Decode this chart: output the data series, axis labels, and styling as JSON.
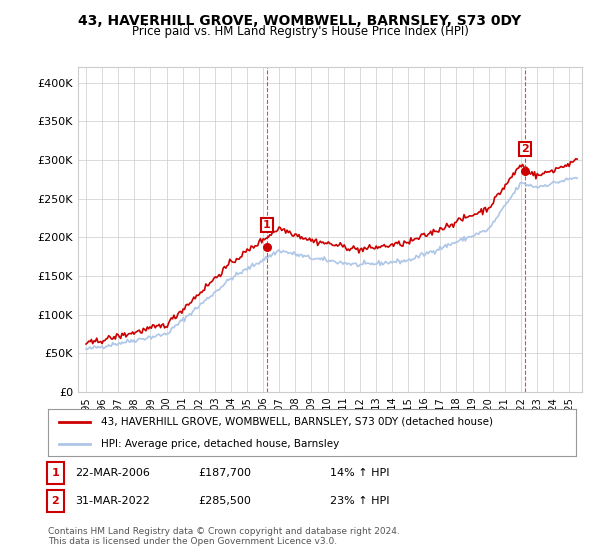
{
  "title": "43, HAVERHILL GROVE, WOMBWELL, BARNSLEY, S73 0DY",
  "subtitle": "Price paid vs. HM Land Registry's House Price Index (HPI)",
  "ylabel_ticks": [
    "£0",
    "£50K",
    "£100K",
    "£150K",
    "£200K",
    "£250K",
    "£300K",
    "£350K",
    "£400K"
  ],
  "ytick_values": [
    0,
    50000,
    100000,
    150000,
    200000,
    250000,
    300000,
    350000,
    400000
  ],
  "ylim": [
    0,
    420000
  ],
  "xlim_start": 1995.0,
  "xlim_end": 2025.5,
  "transaction1": {
    "date_year": 2006.23,
    "price": 187700,
    "label": "1"
  },
  "transaction2": {
    "date_year": 2022.25,
    "price": 285500,
    "label": "2"
  },
  "legend_line1": "43, HAVERHILL GROVE, WOMBWELL, BARNSLEY, S73 0DY (detached house)",
  "legend_line2": "HPI: Average price, detached house, Barnsley",
  "note1_label": "1",
  "note1_date": "22-MAR-2006",
  "note1_price": "£187,700",
  "note1_hpi": "14% ↑ HPI",
  "note2_label": "2",
  "note2_date": "31-MAR-2022",
  "note2_price": "£285,500",
  "note2_hpi": "23% ↑ HPI",
  "footer": "Contains HM Land Registry data © Crown copyright and database right 2024.\nThis data is licensed under the Open Government Licence v3.0.",
  "hpi_color": "#aec6e8",
  "price_color": "#cc0000",
  "marker_color": "#cc0000",
  "background_color": "#ffffff",
  "grid_color": "#cccccc"
}
